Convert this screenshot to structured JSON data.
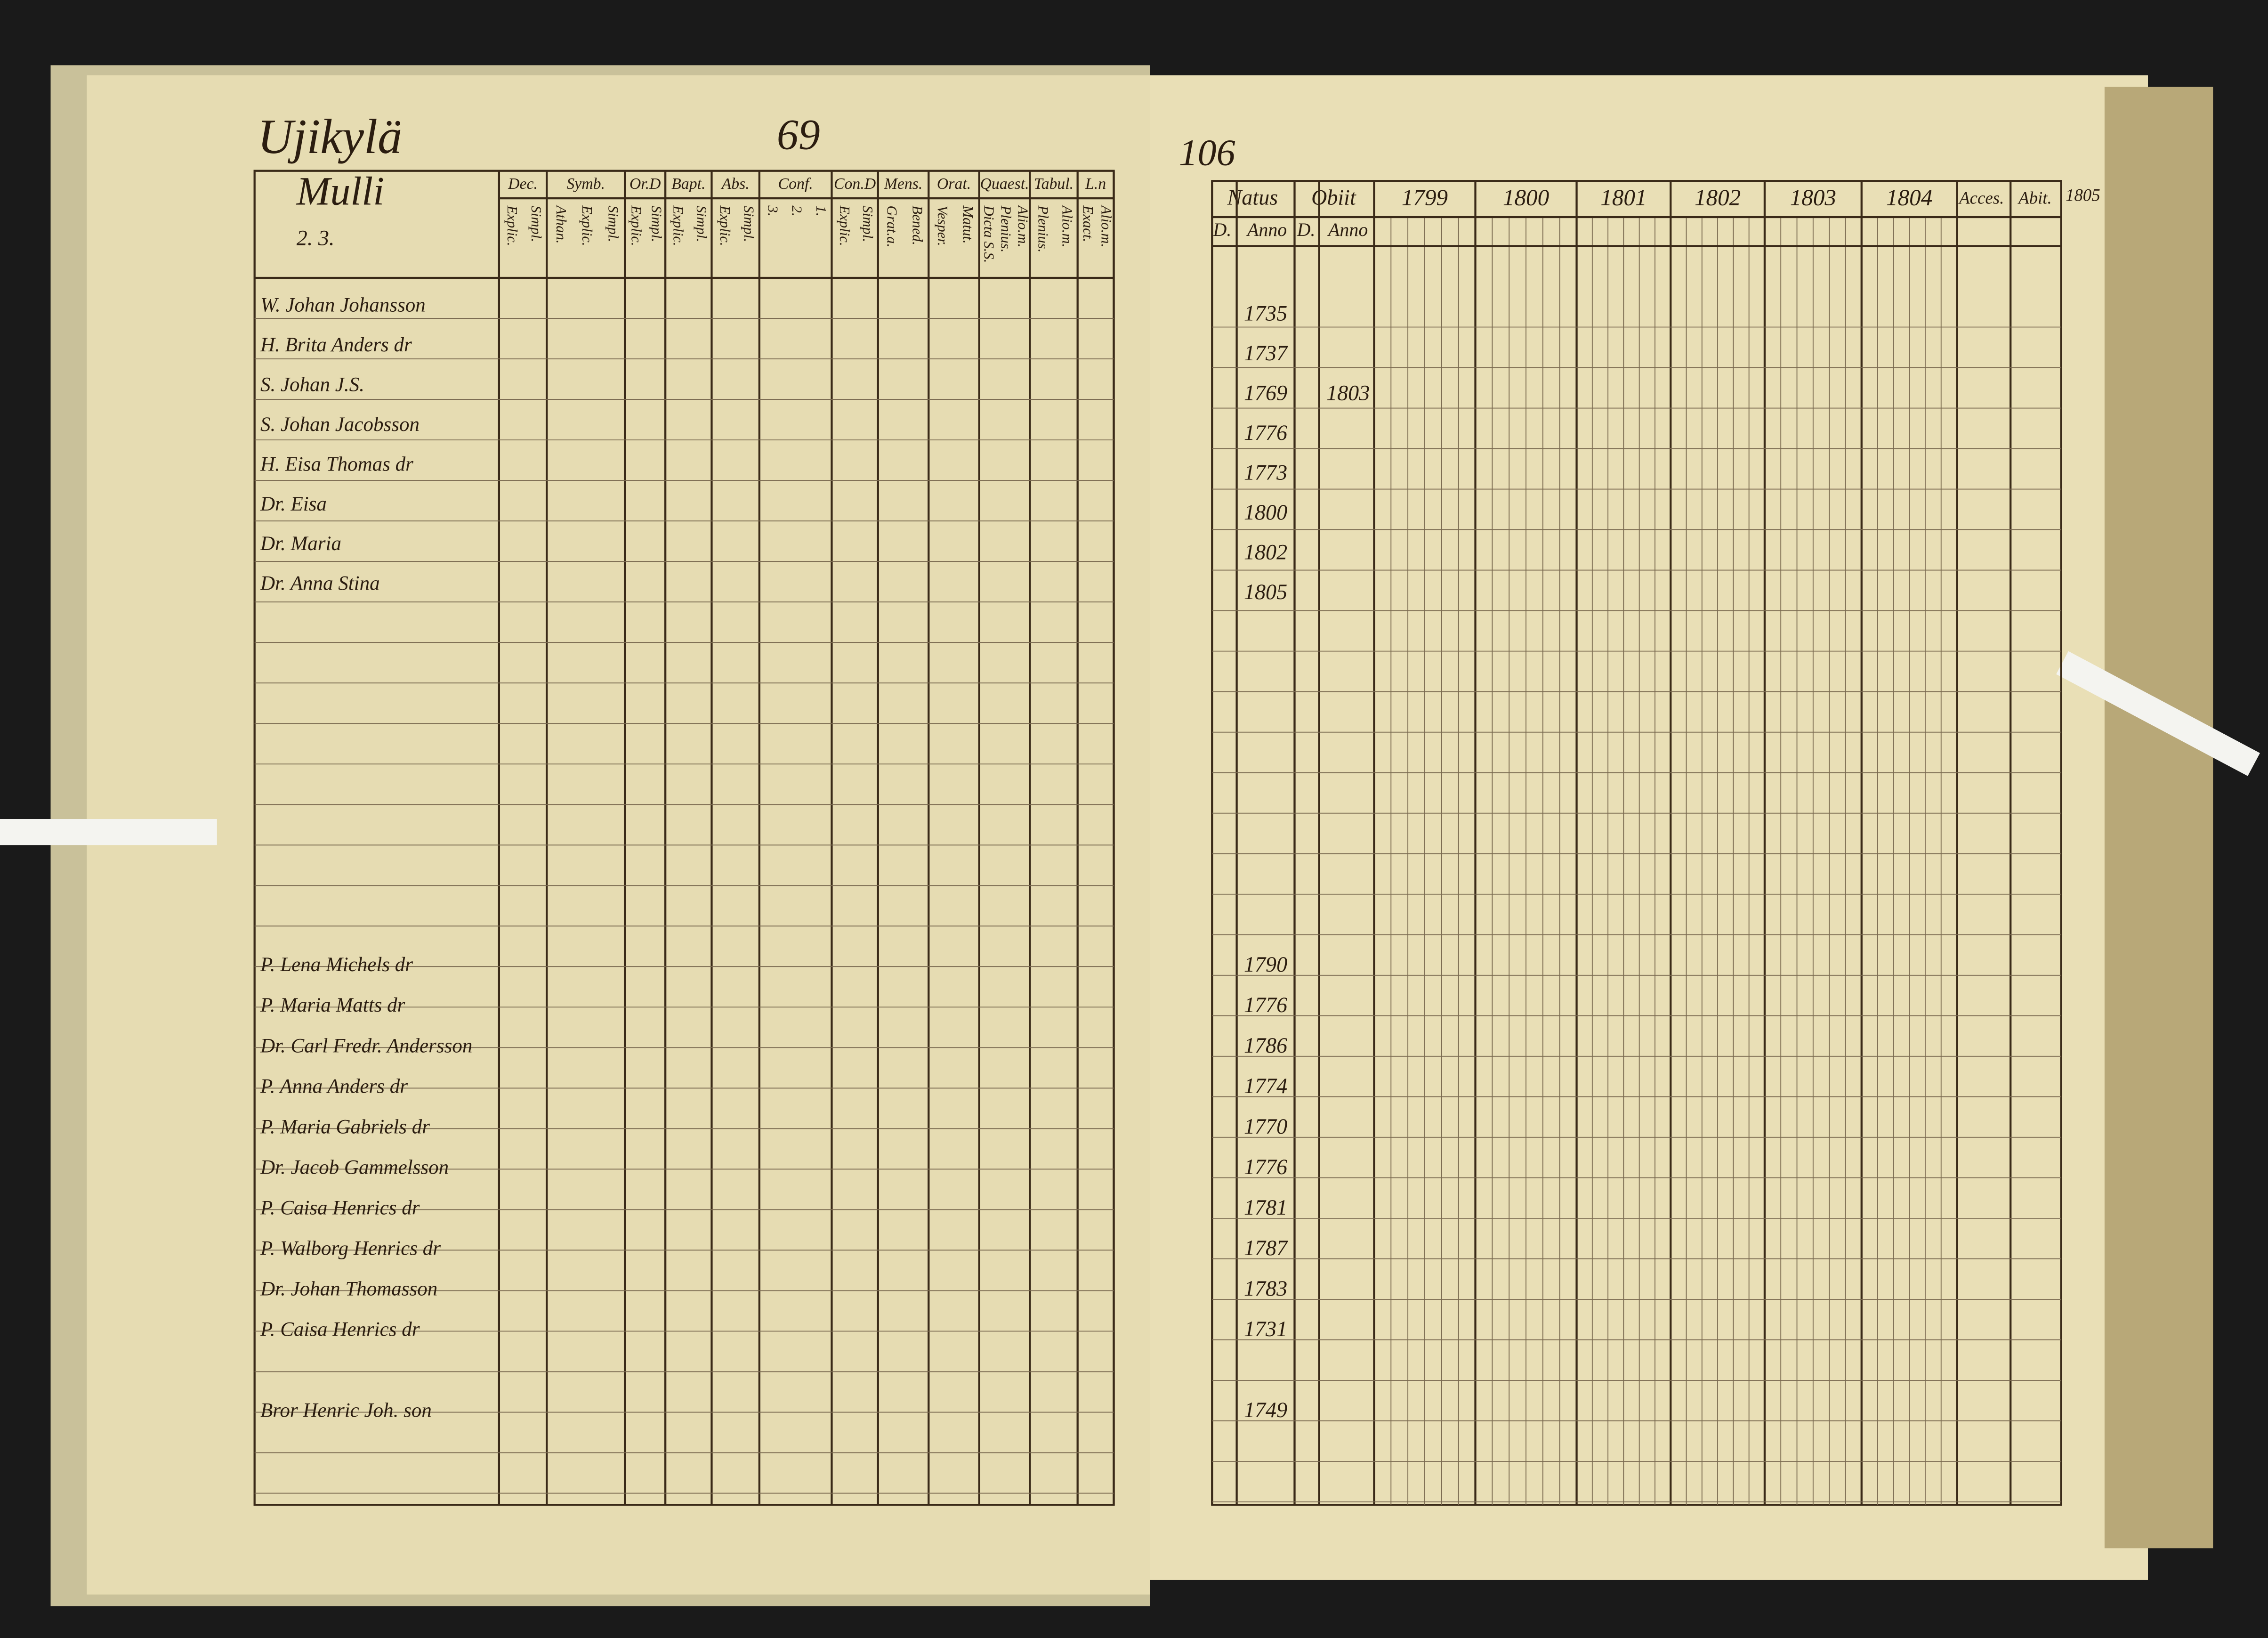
{
  "left_page": {
    "village": "Ujikylä",
    "page_number": "69",
    "farm": "Mulli",
    "farm_note": "2. 3.",
    "columns": [
      {
        "head": "Dec.",
        "sub": [
          "Explic.",
          "Simpl."
        ]
      },
      {
        "head": "Symb.",
        "sub": [
          "Athan.",
          "Explic.",
          "Simpl."
        ]
      },
      {
        "head": "Or.D",
        "sub": [
          "Explic.",
          "Simpl."
        ]
      },
      {
        "head": "Bapt.",
        "sub": [
          "Explic.",
          "Simpl."
        ]
      },
      {
        "head": "Abs.",
        "sub": [
          "Explic.",
          "Simpl."
        ]
      },
      {
        "head": "Conf.",
        "sub": [
          "3.",
          "2.",
          "1."
        ]
      },
      {
        "head": "Con.D",
        "sub": [
          "Explic.",
          "Simpl."
        ]
      },
      {
        "head": "Mens.",
        "sub": [
          "Grat.a.",
          "Bened."
        ]
      },
      {
        "head": "Orat.",
        "sub": [
          "Vesper.",
          "Matut."
        ]
      },
      {
        "head": "Quaest.",
        "sub": [
          "Dicta S.S.",
          "Plenius.",
          "Alio.m."
        ]
      },
      {
        "head": "Tabul.",
        "sub": [
          "Plenius.",
          "Alio.m."
        ]
      },
      {
        "head": "L.n",
        "sub": [
          "Exact.",
          "Alio.m."
        ]
      }
    ]
  },
  "right_page": {
    "page_number": "106",
    "natus": "Natus",
    "obiit": "Obiit",
    "day": "D.",
    "anno": "Anno",
    "years": [
      "1799",
      "1800",
      "1801",
      "1802",
      "1803",
      "1804"
    ],
    "accessit": "Acces.",
    "abiit": "Abit.",
    "next_year": "1805"
  },
  "rows": [
    {
      "name": "W. Johan Johansson",
      "born": "1735"
    },
    {
      "name": "H. Brita Anders dr",
      "born": "1737"
    },
    {
      "name": "S. Johan J.S.",
      "born": "1769",
      "died": "1803"
    },
    {
      "name": "S. Johan Jacobsson",
      "born": "1776"
    },
    {
      "name": "H. Eisa Thomas dr",
      "born": "1773"
    },
    {
      "name": "Dr. Eisa",
      "born": "1800"
    },
    {
      "name": "Dr. Maria",
      "born": "1802"
    },
    {
      "name": "Dr. Anna Stina",
      "born": "1805"
    },
    {
      "name": "P. Lena Michels dr",
      "born": "1790"
    },
    {
      "name": "P. Maria Matts dr",
      "born": "1776"
    },
    {
      "name": "Dr. Carl Fredr. Andersson",
      "born": "1786"
    },
    {
      "name": "P. Anna Anders dr",
      "born": "1774"
    },
    {
      "name": "P. Maria Gabriels dr",
      "born": "1770"
    },
    {
      "name": "Dr. Jacob Gammelsson",
      "born": "1776"
    },
    {
      "name": "P. Caisa Henrics dr",
      "born": "1781"
    },
    {
      "name": "P. Walborg Henrics dr",
      "born": "1787"
    },
    {
      "name": "Dr. Johan Thomasson",
      "born": "1783"
    },
    {
      "name": "P. Caisa Henrics dr",
      "born": "1731"
    },
    {
      "name": "Bror Henric Joh. son",
      "born": "1749"
    }
  ]
}
